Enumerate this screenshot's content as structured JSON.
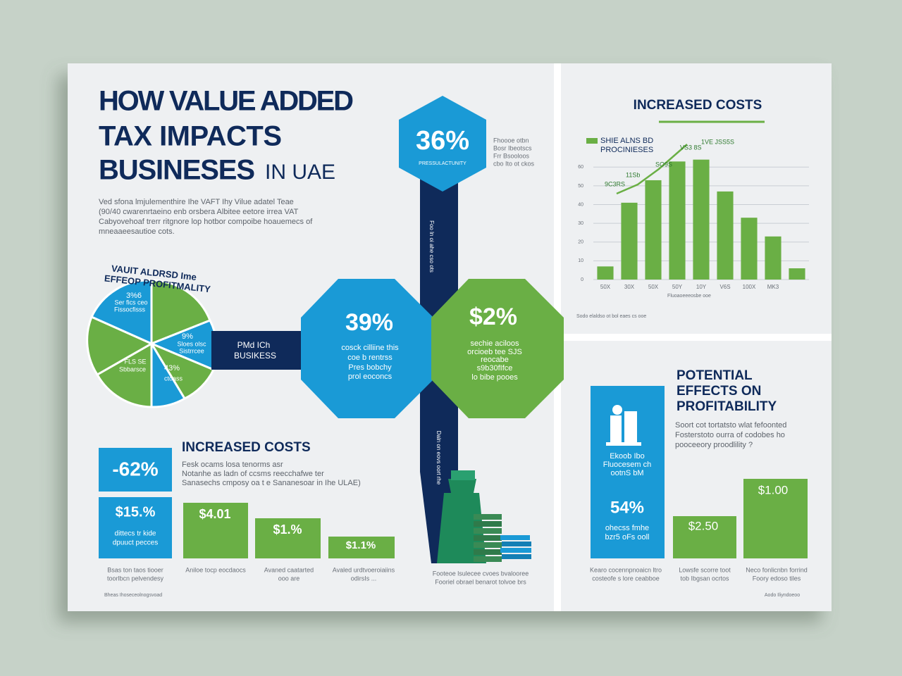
{
  "header": {
    "title": [
      "HOW VALUE ADDED",
      "TAX IMPACTS",
      "BUSINESES"
    ],
    "title_suffix": "IN UAE",
    "intro": [
      "Ved sfona lmjulementhire  Ihe  VAFT  Ihy Vilue adatel Teae",
      "(90/40 cwarenrtaeino enb orsbera Albitee eetore irrea VAT",
      "Cabyovehoaf trerr ritgnore lop hotbor compoibe hoauemecs of",
      "mneaaeesautioe cots."
    ]
  },
  "pie": {
    "title": [
      "VAUIT ALDRSD Ime",
      "EFFEOP PROFITMALITY"
    ],
    "labels": [
      "3%6",
      "Ser fics ceo",
      "Fissocfisss",
      "9%",
      "Sloes olsc",
      "Sistrrcee",
      "FLS SE",
      "Sbbarsce",
      "43%",
      "ctoass"
    ]
  },
  "connector": [
    "PMd ICh",
    "BUSIKESS"
  ],
  "hex_top": {
    "value": "36%",
    "caption": "PRESSULACTUNITY",
    "side": [
      "Fhoooe otbn",
      "Bosr Ibeotscs",
      "Frr Bsooloos",
      "cbo Ito ot ckos"
    ]
  },
  "oct_left": {
    "value": "39%",
    "caption": [
      "cosck  cilliine this",
      "coe b rentrss",
      "Pres bobchy",
      "prol eoconcs"
    ]
  },
  "oct_right": {
    "value": "$2%",
    "caption": [
      "sechie aciloos",
      "orcioeb tee SJS",
      "reocabe",
      "s9b30fIfce",
      "lo bibe pooes"
    ]
  },
  "bar_texts": [
    "Foo ln oi ahe cso ots",
    "Daln on eovs oort rhe"
  ],
  "costs_left": {
    "title": "INCREASED COSTS",
    "box1": "-62%",
    "box2": {
      "value": "$15.%",
      "lines": [
        "dittecs tr kide",
        "dpuuct pecces"
      ]
    },
    "desc": [
      "Fesk ocams  losa tenorms asr",
      "Notanhe as ladn of ccsms reecchafwe ter",
      "Sanasechs cmposy oa t e Sananesoar in  Ihe ULAE)"
    ],
    "bars": [
      "$4.01",
      "$1.%",
      "$1.1%"
    ],
    "captions": [
      [
        "Bsas ton taos tiooer",
        "toorlbcn pelvendesy"
      ],
      [
        "Aniloe tocp eocdaocs"
      ],
      [
        "Avaned caatarted",
        "ooo are"
      ],
      [
        "Avaled urdtvoeroiaiins",
        "odirsIs ..."
      ]
    ],
    "stack_caption": [
      "Footeoe lsulecee cvoes bvalooree",
      "Fooriel obrael benarot tolvoe brs"
    ],
    "footer": "Bheas Ihoseceolnogsvoad"
  },
  "chart_data": {
    "type": "bar",
    "title": "INCREASED COSTS",
    "legend": [
      "SHIE ALNS BD",
      "PROCINIESES"
    ],
    "annotations": [
      "1VE  JSS5S",
      "VS3 8S",
      "SO9S",
      "11Sb",
      "9C3RS"
    ],
    "categories": [
      "50X",
      "30X",
      "50X",
      "50Y",
      "10Y",
      "V6S",
      "100X",
      "MK3",
      null
    ],
    "values": [
      7,
      41,
      53,
      63,
      64,
      47,
      33,
      23,
      6
    ],
    "color": "#6aaf45",
    "ylim": [
      0,
      65
    ],
    "yticks": [
      0,
      10,
      20,
      30,
      40,
      50,
      60
    ],
    "grid": true,
    "xlabel": "Fluoaoeeeosbe ooe",
    "note": "Sodo elaldso ot bol eaes cs ooe"
  },
  "profit": {
    "title": [
      "POTENTIAL",
      "EFFECTS ON",
      "PROFITABILITY"
    ],
    "desc": [
      "Soort cot tortatsto wlat fefoonted",
      "Fosterstoto ourra of codobes ho",
      "pooceeory proodlility ?"
    ],
    "card": {
      "lines": [
        "Ekoob Ibo",
        "Fluocesem ch",
        "ootnS bM"
      ],
      "value": "54%",
      "sub": [
        "ohecss fmhe",
        "bzr5 oFs ooll"
      ]
    },
    "bars": [
      "$2.50",
      "$1.00"
    ],
    "captions": [
      [
        "Kearo cocennpnoaicn ltro",
        "costeofe s lore ceabboe"
      ],
      [
        "Lowsfe scorre toot",
        "tob Ibgsan ocrtos"
      ],
      [
        "Neco fonlicnbn forrind",
        "Foory edoso tiles"
      ]
    ],
    "footer": "Aodo   Iliyndoeoo"
  }
}
